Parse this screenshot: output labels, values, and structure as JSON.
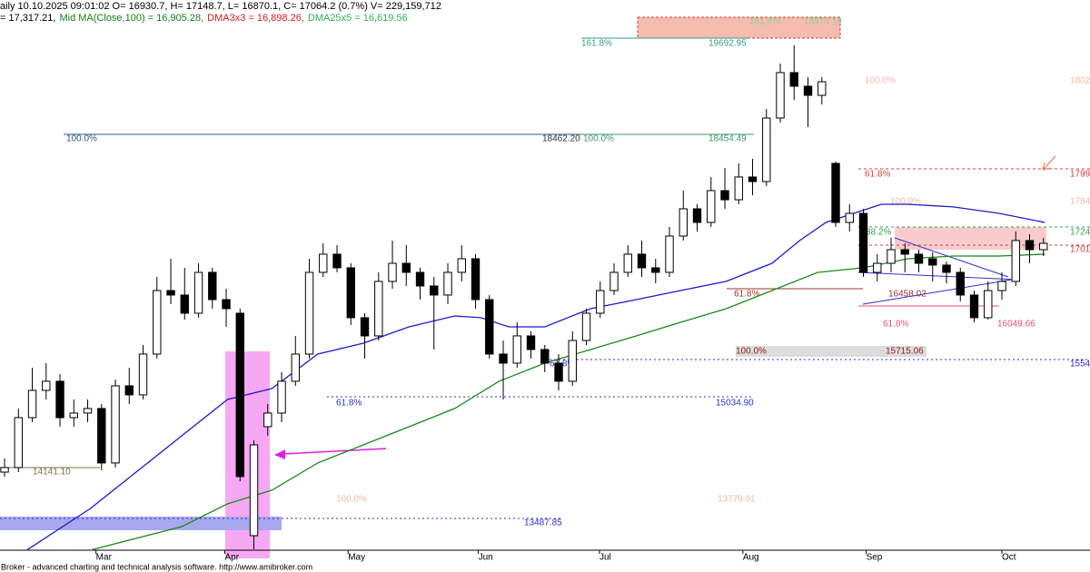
{
  "header": {
    "line1": "aily 10.10.2025 09:01:02 O= 16930.7, H= 17148.7, L= 16870.1, C= 17064.2 (0.7%) V= 229,159,712",
    "line2": [
      {
        "text": "= 17,317.21,",
        "color": "#000000"
      },
      {
        "text": "Mid MA(Close,100) = 16,905.28,",
        "color": "#1a7a1a"
      },
      {
        "text": "DMA3x3 = 16,898.26,",
        "color": "#d02020"
      },
      {
        "text": "DMA25x5 = 16,619.56",
        "color": "#30b050"
      }
    ]
  },
  "footer": "Broker - advanced charting and technical analysis software. http://www.amibroker.com",
  "chart_data": {
    "type": "candlestick",
    "xlim": [
      -0.33,
      78.36
    ],
    "ylim": [
      13147,
      20256
    ],
    "xticks": [
      {
        "value": 6.6,
        "label": "Mar"
      },
      {
        "value": 15.9,
        "label": "Apr"
      },
      {
        "value": 24.8,
        "label": "May"
      },
      {
        "value": 34.2,
        "label": "Jun"
      },
      {
        "value": 42.95,
        "label": "Jul"
      },
      {
        "value": 53.3,
        "label": "Aug"
      },
      {
        "value": 62.2,
        "label": "Sep"
      },
      {
        "value": 72,
        "label": "Oct"
      }
    ],
    "up_color": "#ffffff",
    "down_color": "#000000",
    "candles": [
      [
        14156,
        14332,
        14098,
        14215
      ],
      [
        14215,
        14978,
        14156,
        14860
      ],
      [
        14860,
        15505,
        14802,
        15212
      ],
      [
        15212,
        15564,
        15095,
        15330
      ],
      [
        15330,
        15423,
        14743,
        14860
      ],
      [
        14860,
        15095,
        14743,
        14919
      ],
      [
        14919,
        15095,
        14802,
        14978
      ],
      [
        14978,
        15036,
        14180,
        14274
      ],
      [
        14274,
        15353,
        14215,
        15271
      ],
      [
        15271,
        15505,
        15036,
        15154
      ],
      [
        15154,
        15799,
        15095,
        15681
      ],
      [
        15681,
        16678,
        15623,
        16502
      ],
      [
        16502,
        16913,
        16326,
        16444
      ],
      [
        16444,
        16796,
        16127,
        16209
      ],
      [
        16209,
        16854,
        16151,
        16737
      ],
      [
        16737,
        16796,
        16268,
        16385
      ],
      [
        16385,
        16526,
        16033,
        16268
      ],
      [
        16209,
        16268,
        14039,
        14098
      ],
      [
        13335,
        14567,
        13159,
        14508
      ],
      [
        14743,
        15036,
        14626,
        14919
      ],
      [
        14919,
        15447,
        14802,
        15330
      ],
      [
        15330,
        15916,
        15271,
        15681
      ],
      [
        15681,
        16913,
        15623,
        16737
      ],
      [
        16737,
        17112,
        16678,
        16972
      ],
      [
        16972,
        17089,
        16737,
        16796
      ],
      [
        16796,
        16854,
        16057,
        16151
      ],
      [
        16151,
        16209,
        15623,
        15916
      ],
      [
        15916,
        16737,
        15857,
        16620
      ],
      [
        16620,
        17148,
        16526,
        16854
      ],
      [
        16854,
        17089,
        16561,
        16737
      ],
      [
        16737,
        16796,
        16385,
        16561
      ],
      [
        16561,
        16678,
        15740,
        16444
      ],
      [
        16444,
        16854,
        16326,
        16737
      ],
      [
        16737,
        17089,
        16620,
        16913
      ],
      [
        16913,
        16972,
        16268,
        16385
      ],
      [
        16385,
        16444,
        15623,
        15681
      ],
      [
        15681,
        15857,
        15095,
        15564
      ],
      [
        15564,
        16092,
        15505,
        15916
      ],
      [
        15916,
        15975,
        15623,
        15740
      ],
      [
        15740,
        15799,
        15447,
        15564
      ],
      [
        15564,
        15681,
        15212,
        15330
      ],
      [
        15330,
        15975,
        15271,
        15857
      ],
      [
        15857,
        16268,
        15799,
        16209
      ],
      [
        16209,
        16620,
        16151,
        16502
      ],
      [
        16502,
        16854,
        16444,
        16737
      ],
      [
        16737,
        17089,
        16678,
        16972
      ],
      [
        16972,
        17148,
        16678,
        16796
      ],
      [
        16796,
        16913,
        16596,
        16737
      ],
      [
        16737,
        17324,
        16678,
        17206
      ],
      [
        17206,
        17793,
        17148,
        17558
      ],
      [
        17558,
        17617,
        17265,
        17382
      ],
      [
        17382,
        17969,
        17324,
        17793
      ],
      [
        17793,
        18086,
        17558,
        17675
      ],
      [
        17675,
        18145,
        17617,
        17969
      ],
      [
        17969,
        18203,
        17734,
        17910
      ],
      [
        17910,
        18848,
        17851,
        18731
      ],
      [
        18731,
        19435,
        18672,
        19318
      ],
      [
        19318,
        19670,
        18966,
        19142
      ],
      [
        19142,
        19259,
        18614,
        19024
      ],
      [
        19024,
        19259,
        18907,
        19200
      ],
      [
        18145,
        18168,
        17324,
        17382
      ],
      [
        17382,
        17617,
        17265,
        17499
      ],
      [
        17499,
        17558,
        16678,
        16737
      ],
      [
        16737,
        16972,
        16620,
        16854
      ],
      [
        16854,
        17183,
        16737,
        17030
      ],
      [
        17030,
        17112,
        16737,
        16972
      ],
      [
        16972,
        17030,
        16737,
        16854
      ],
      [
        16913,
        16995,
        16620,
        16831
      ],
      [
        16831,
        16878,
        16596,
        16737
      ],
      [
        16737,
        16796,
        16362,
        16444
      ],
      [
        16444,
        16502,
        16092,
        16151
      ],
      [
        16151,
        16620,
        16127,
        16502
      ],
      [
        16502,
        16737,
        16385,
        16620
      ],
      [
        16620,
        17265,
        16561,
        17148
      ],
      [
        17148,
        17230,
        16854,
        17030
      ],
      [
        17030,
        17183,
        16948,
        17112
      ]
    ],
    "series": [
      {
        "type": "line",
        "color": "#1c1cc8",
        "x": [
          1.6,
          6.2,
          12.8,
          16.1,
          19.3,
          22.6,
          25.9,
          29.2,
          32.5,
          34.4,
          36.4,
          39.0,
          42.3,
          45.6,
          48.8,
          52.1,
          55.4,
          57.4,
          59.3,
          61.3,
          63.3,
          65.2,
          68.5,
          71.8,
          75.1
        ],
        "values": [
          13148,
          13687,
          14626,
          15095,
          15236,
          15681,
          15822,
          16033,
          16174,
          16151,
          16033,
          16033,
          16268,
          16385,
          16502,
          16620,
          16854,
          17148,
          17382,
          17499,
          17617,
          17617,
          17582,
          17499,
          17382
        ]
      },
      {
        "type": "line",
        "color": "#1a8a1a",
        "x": [
          6.2,
          12.8,
          16.1,
          19.3,
          22.6,
          25.9,
          29.2,
          32.5,
          35.7,
          39.0,
          42.3,
          45.6,
          48.8,
          52.1,
          55.4,
          58.7,
          62.0,
          65.2,
          68.5,
          71.8,
          75.1
        ],
        "values": [
          13148,
          13452,
          13746,
          13922,
          14274,
          14508,
          14743,
          14978,
          15330,
          15564,
          15740,
          15916,
          16092,
          16268,
          16502,
          16737,
          16796,
          16913,
          16948,
          16948,
          16972
        ]
      }
    ],
    "annotations": [
      {
        "text": "161.8%",
        "color": "#3a9a8a"
      },
      {
        "text": "19692.95",
        "color": "#3a9a8a"
      },
      {
        "text": "161.8%",
        "color": "#8fd08f"
      },
      {
        "text": "19974.19",
        "color": "#8fd08f"
      },
      {
        "text": "100.0%",
        "color": "#2c5a7a"
      },
      {
        "text": "18462.20",
        "color": "#333333"
      },
      {
        "text": "100.0%",
        "color": "#3c9a6a"
      },
      {
        "text": "18454.49",
        "color": "#3c9a6a"
      },
      {
        "text": "100.0%",
        "color": "#f0b8a8"
      },
      {
        "text": "61.8%",
        "color": "#d04040"
      },
      {
        "text": "100.0%",
        "color": "#f0b8a8"
      },
      {
        "text": "38.2%",
        "color": "#3aa050"
      },
      {
        "text": "61.8%",
        "color": "#a03030"
      },
      {
        "text": "16458.02",
        "color": "#a03030"
      },
      {
        "text": "61.8%",
        "color": "#e05080"
      },
      {
        "text": "16049.66",
        "color": "#e05080"
      },
      {
        "text": "100.0%",
        "color": "#902020"
      },
      {
        "text": "15715.06",
        "color": "#902020"
      },
      {
        "text": "61.8%",
        "color": "#3030d0"
      },
      {
        "text": "15034.90",
        "color": "#3030d0"
      },
      {
        "text": "100.0%",
        "color": "#f0b8a8"
      },
      {
        "text": "13779.91",
        "color": "#f0b8a8"
      },
      {
        "text": "13487.85",
        "color": "#3030d0"
      },
      {
        "text": "14141.10",
        "color": "#807040"
      },
      {
        "text": "61.8%",
        "color": "#3030d0"
      },
      {
        "text": "1802",
        "color": "#f0b8a8"
      },
      {
        "text": "1799",
        "color": "#d04040"
      },
      {
        "text": "1784",
        "color": "#f0b8a8"
      },
      {
        "text": "1724",
        "color": "#3aa050"
      },
      {
        "text": "1701",
        "color": "#d04040"
      },
      {
        "text": "1554",
        "color": "#3030d0"
      }
    ]
  }
}
